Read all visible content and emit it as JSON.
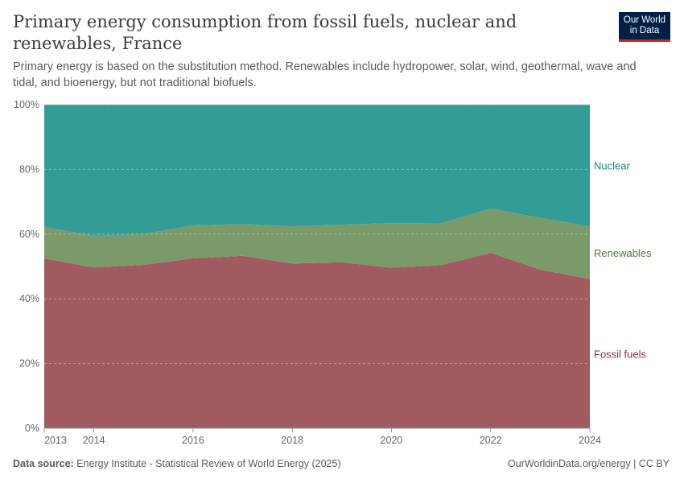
{
  "header": {
    "title": "Primary energy consumption from fossil fuels, nuclear and renewables, France",
    "subtitle": "Primary energy is based on the substitution method. Renewables include hydropower, solar, wind, geothermal, wave and tidal, and bioenergy, but not traditional biofuels.",
    "logo": "Our World in Data"
  },
  "footer": {
    "source_label": "Data source:",
    "source": "Energy Institute - Statistical Review of World Energy (2025)",
    "credit": "OurWorldinData.org/energy | CC BY"
  },
  "chart_data": {
    "type": "area",
    "stacked": true,
    "normalized": true,
    "x": [
      2013,
      2014,
      2015,
      2016,
      2017,
      2018,
      2019,
      2020,
      2021,
      2022,
      2023,
      2024
    ],
    "xticks": [
      "2013",
      "2014",
      "2016",
      "2018",
      "2020",
      "2022",
      "2024"
    ],
    "yticks": [
      "0%",
      "20%",
      "40%",
      "60%",
      "80%",
      "100%"
    ],
    "ylim": [
      0,
      100
    ],
    "grid": "horizontal dashed",
    "legend": "right (labels at series end)",
    "series": [
      {
        "name": "Fossil fuels",
        "color": "#a05a60",
        "label_color": "#883039",
        "values": [
          52.5,
          49.7,
          50.5,
          52.5,
          53.3,
          50.9,
          51.3,
          49.6,
          50.4,
          54.2,
          49.0,
          46.1
        ]
      },
      {
        "name": "Renewables",
        "color": "#7a9a6a",
        "label_color": "#4c7a3e",
        "values": [
          9.6,
          9.8,
          9.5,
          10.2,
          9.8,
          11.5,
          11.6,
          13.8,
          12.9,
          13.7,
          16.0,
          16.3
        ]
      },
      {
        "name": "Nuclear",
        "color": "#339c94",
        "label_color": "#1a8a80",
        "values": [
          37.9,
          40.5,
          40.0,
          37.3,
          36.9,
          37.6,
          37.1,
          36.6,
          36.7,
          32.1,
          35.0,
          37.6
        ]
      }
    ]
  }
}
